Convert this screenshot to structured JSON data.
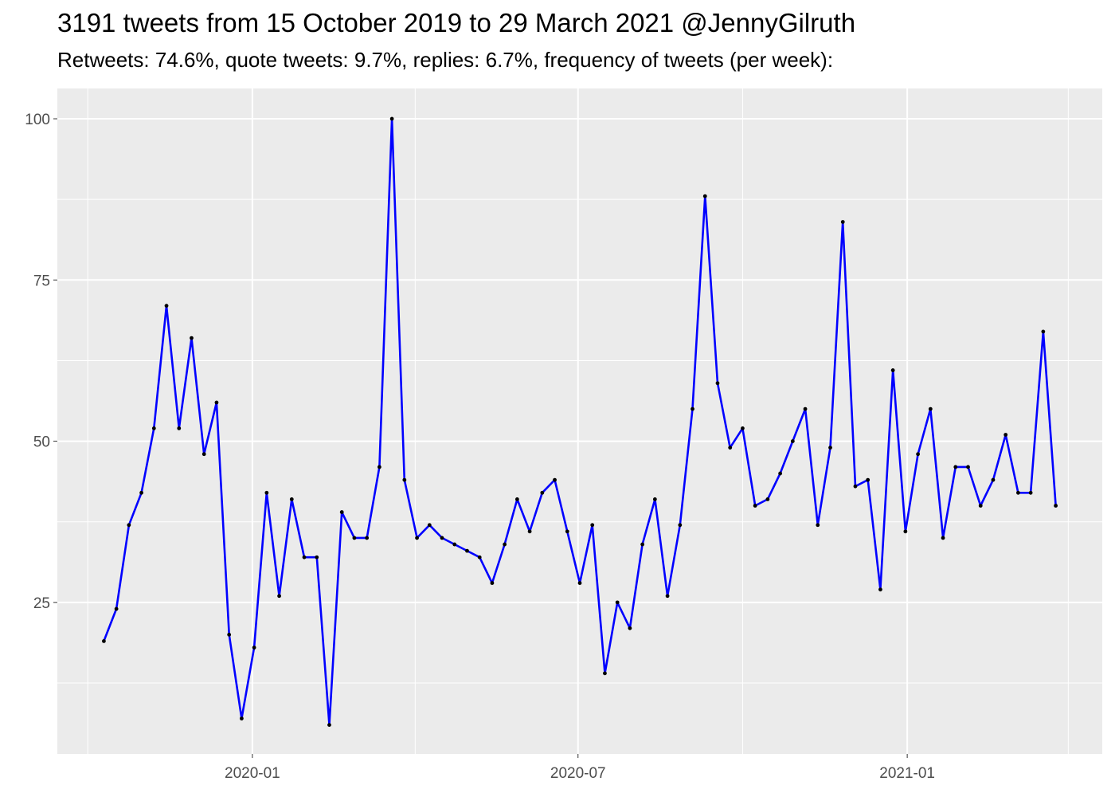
{
  "chart_data": {
    "type": "line",
    "title": "3191 tweets from 15 October 2019 to 29 March 2021 @JennyGilruth",
    "subtitle": "Retweets: 74.6%, quote tweets: 9.7%, replies: 6.7%, frequency of tweets (per week):",
    "xlabel": "",
    "ylabel": "",
    "xlim": [
      "2019-09-14",
      "2021-04-20"
    ],
    "ylim": [
      1.5,
      104.7
    ],
    "x_ticks": [
      {
        "date": "2020-01-01",
        "label": "2020-01"
      },
      {
        "date": "2020-07-01",
        "label": "2020-07"
      },
      {
        "date": "2021-01-01",
        "label": "2021-01"
      }
    ],
    "x_minor_ticks": [
      "2019-10-01",
      "2020-04-01",
      "2020-10-01",
      "2021-04-01"
    ],
    "y_ticks": [
      25,
      50,
      75,
      100
    ],
    "y_minor_ticks": [
      12.5,
      37.5,
      62.5,
      87.5
    ],
    "grid": true,
    "background": "#EBEBEB",
    "line_color": "#0000FF",
    "point_color": "#000000",
    "x": [
      "2019-10-10",
      "2019-10-17",
      "2019-10-24",
      "2019-10-31",
      "2019-11-07",
      "2019-11-14",
      "2019-11-21",
      "2019-11-28",
      "2019-12-05",
      "2019-12-12",
      "2019-12-19",
      "2019-12-26",
      "2020-01-02",
      "2020-01-09",
      "2020-01-16",
      "2020-01-23",
      "2020-01-30",
      "2020-02-06",
      "2020-02-13",
      "2020-02-20",
      "2020-02-27",
      "2020-03-05",
      "2020-03-12",
      "2020-03-19",
      "2020-03-26",
      "2020-04-02",
      "2020-04-09",
      "2020-04-16",
      "2020-04-23",
      "2020-04-30",
      "2020-05-07",
      "2020-05-14",
      "2020-05-21",
      "2020-05-28",
      "2020-06-04",
      "2020-06-11",
      "2020-06-18",
      "2020-06-25",
      "2020-07-02",
      "2020-07-09",
      "2020-07-16",
      "2020-07-23",
      "2020-07-30",
      "2020-08-06",
      "2020-08-13",
      "2020-08-20",
      "2020-08-27",
      "2020-09-03",
      "2020-09-10",
      "2020-09-17",
      "2020-09-24",
      "2020-10-01",
      "2020-10-08",
      "2020-10-15",
      "2020-10-22",
      "2020-10-29",
      "2020-11-05",
      "2020-11-12",
      "2020-11-19",
      "2020-11-26",
      "2020-12-03",
      "2020-12-10",
      "2020-12-17",
      "2020-12-24",
      "2020-12-31",
      "2021-01-07",
      "2021-01-14",
      "2021-01-21",
      "2021-01-28",
      "2021-02-04",
      "2021-02-11",
      "2021-02-18",
      "2021-02-25",
      "2021-03-04",
      "2021-03-11",
      "2021-03-18",
      "2021-03-25"
    ],
    "y": [
      19,
      24,
      37,
      42,
      52,
      71,
      52,
      66,
      48,
      56,
      20,
      7,
      18,
      42,
      26,
      41,
      32,
      32,
      6,
      39,
      35,
      35,
      46,
      100,
      44,
      35,
      37,
      35,
      34,
      33,
      32,
      28,
      34,
      41,
      36,
      42,
      44,
      36,
      28,
      37,
      14,
      25,
      21,
      34,
      41,
      26,
      37,
      55,
      88,
      59,
      49,
      52,
      40,
      41,
      45,
      50,
      55,
      37,
      49,
      84,
      43,
      44,
      27,
      61,
      36,
      48,
      55,
      35,
      46,
      46,
      40,
      44,
      51,
      42,
      42,
      67,
      40
    ]
  }
}
